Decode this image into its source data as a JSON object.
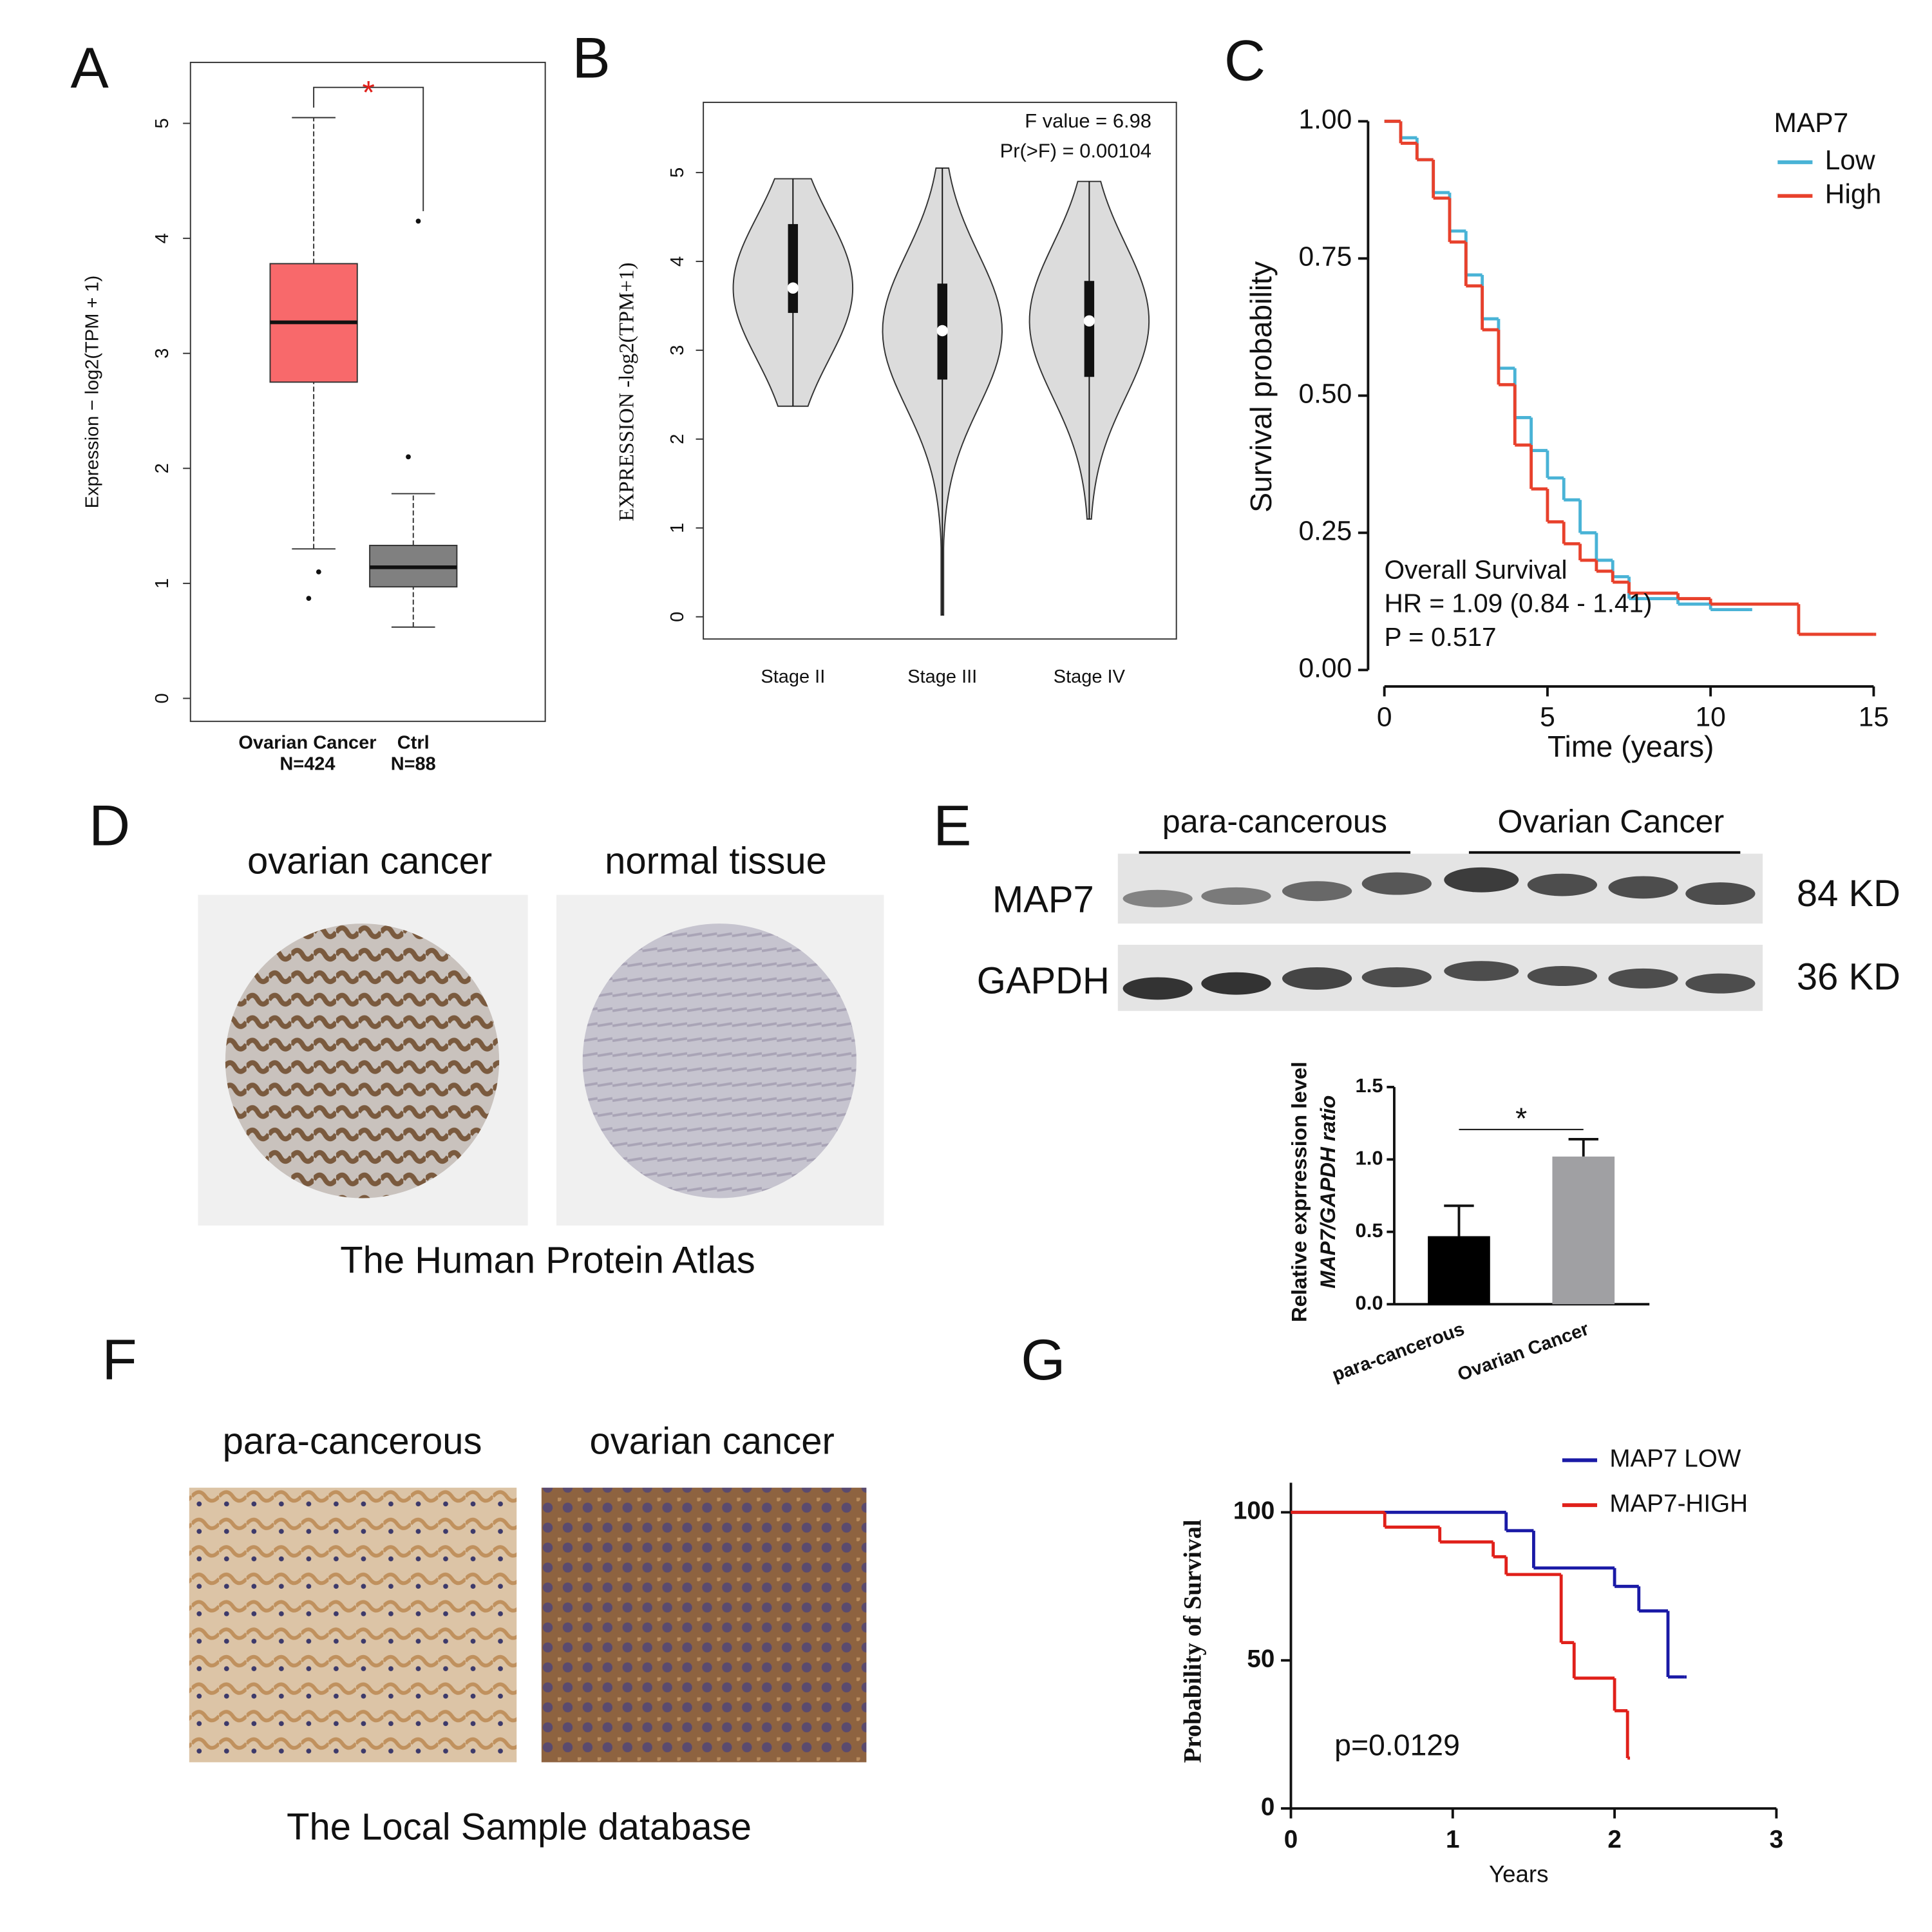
{
  "figure": {
    "panel_labels": [
      "A",
      "B",
      "C",
      "D",
      "E",
      "F",
      "G"
    ],
    "panel_d": {
      "captions": [
        "ovarian cancer",
        "normal tissue"
      ],
      "source": "The Human Protein Atlas"
    },
    "panel_e_blot": {
      "groups": [
        "para-cancerous",
        "Ovarian Cancer"
      ],
      "proteins": [
        "MAP7",
        "GAPDH"
      ],
      "sizes": [
        "84 KD",
        "36 KD"
      ]
    },
    "panel_f": {
      "captions": [
        "para-cancerous",
        "ovarian cancer"
      ],
      "source": "The Local Sample  database"
    }
  },
  "chart_data": [
    {
      "type": "box",
      "ylabel": "Expression − log2(TPM + 1)",
      "categories": [
        "Ovarian Cancer",
        "Ctrl"
      ],
      "group_sizes": [
        "N=424",
        "N=88"
      ],
      "colors": [
        "#f8696b",
        "#808080"
      ],
      "boxes": [
        {
          "whislo": 1.3,
          "q1": 2.75,
          "med": 3.27,
          "q3": 3.78,
          "whishi": 5.05,
          "fliers": [
            0.87,
            1.1
          ]
        },
        {
          "whislo": 0.62,
          "q1": 0.97,
          "med": 1.14,
          "q3": 1.33,
          "whishi": 1.78,
          "fliers": [
            2.1,
            4.15
          ]
        }
      ],
      "ylim": [
        -0.2,
        5.53
      ],
      "yticks": [
        0,
        1,
        2,
        3,
        4,
        5
      ],
      "significance": "*"
    },
    {
      "type": "violin",
      "ylabel": "EXPRESSION -log2(TPM+1)",
      "annotations": [
        "F value = 6.98",
        "Pr(>F) = 0.00104"
      ],
      "categories": [
        "Stage II",
        "Stage III",
        "Stage IV"
      ],
      "violins": [
        {
          "min": 2.37,
          "q1": 3.42,
          "med": 3.7,
          "q3": 4.42,
          "max": 4.93
        },
        {
          "min": 0.02,
          "q1": 2.67,
          "med": 3.22,
          "q3": 3.75,
          "max": 5.05
        },
        {
          "min": 1.1,
          "q1": 2.7,
          "med": 3.33,
          "q3": 3.78,
          "max": 4.9
        }
      ],
      "color": "#dcdcdc",
      "ylim": [
        -0.25,
        5.79
      ],
      "yticks": [
        0,
        1,
        2,
        3,
        4,
        5
      ]
    },
    {
      "type": "survival",
      "xlabel": "Time (years)",
      "ylabel": "Survival probability",
      "legend_title": "MAP7",
      "legend": "top-right",
      "annotations": [
        "Overall Survival",
        "HR = 1.09 (0.84 -  1.41)",
        "P = 0.517"
      ],
      "series": [
        {
          "name": "Low",
          "color": "#49b3d6",
          "x": [
            0,
            0.5,
            1,
            1.5,
            2,
            2.5,
            3,
            3.5,
            4,
            4.5,
            5,
            5.5,
            6,
            6.5,
            7,
            7.5,
            8,
            9,
            10,
            11.2
          ],
          "values": [
            1,
            0.97,
            0.93,
            0.87,
            0.8,
            0.72,
            0.64,
            0.55,
            0.46,
            0.4,
            0.35,
            0.31,
            0.25,
            0.2,
            0.17,
            0.13,
            0.13,
            0.12,
            0.11,
            0.11
          ]
        },
        {
          "name": "High",
          "color": "#e8412c",
          "x": [
            0,
            0.5,
            1,
            1.5,
            2,
            2.5,
            3,
            3.5,
            4,
            4.5,
            5,
            5.5,
            6,
            6.5,
            7,
            7.5,
            8,
            9,
            10,
            12.7,
            15
          ],
          "values": [
            1,
            0.96,
            0.93,
            0.86,
            0.78,
            0.7,
            0.62,
            0.52,
            0.41,
            0.33,
            0.27,
            0.23,
            0.2,
            0.18,
            0.16,
            0.14,
            0.14,
            0.13,
            0.12,
            0.065,
            0.065
          ]
        }
      ],
      "xlim": [
        -0.5,
        15.3
      ],
      "ylim": [
        -0.03,
        1.03
      ],
      "xticks": [
        0,
        5,
        10,
        15
      ],
      "yticks": [
        {
          "value": 0,
          "label": "0.00"
        },
        {
          "value": 0.25,
          "label": "0.25"
        },
        {
          "value": 0.5,
          "label": "0.50"
        },
        {
          "value": 0.75,
          "label": "0.75"
        },
        {
          "value": 1,
          "label": "1.00"
        }
      ]
    },
    {
      "type": "bar",
      "ylabel": [
        "Relative exprression level",
        "MAP7/GAPDH ratio"
      ],
      "categories": [
        "para-cancerous",
        "Ovarian Cancer"
      ],
      "values": [
        0.47,
        1.02
      ],
      "errors": [
        0.21,
        0.12
      ],
      "colors": [
        "#000000",
        "#a0a0a3"
      ],
      "ylim": [
        0,
        1.5
      ],
      "yticks": [
        {
          "value": 0,
          "label": "0.0"
        },
        {
          "value": 0.5,
          "label": "0.5"
        },
        {
          "value": 1,
          "label": "1.0"
        },
        {
          "value": 1.5,
          "label": "1.5"
        }
      ],
      "significance": "*"
    },
    {
      "type": "survival",
      "xlabel": "Years",
      "ylabel": "Probability of Survival",
      "legend": "top",
      "annotations": [
        "p=0.0129"
      ],
      "series": [
        {
          "name": "MAP7 LOW",
          "color": "#1a1aa6",
          "x": [
            0,
            1.33,
            1.5,
            2.0,
            2.15,
            2.33,
            2.43
          ],
          "values": [
            100,
            93.8,
            81.2,
            75,
            66.7,
            44.4,
            44.4
          ]
        },
        {
          "name": "MAP7-HIGH",
          "color": "#e0201a",
          "x": [
            0,
            0.58,
            0.92,
            1.25,
            1.33,
            1.67,
            1.75,
            2.0,
            2.08
          ],
          "values": [
            100,
            95,
            90,
            85,
            79,
            56,
            44,
            33,
            17
          ]
        }
      ],
      "xlim": [
        0,
        3
      ],
      "ylim": [
        0,
        110
      ],
      "xticks": [
        0,
        1,
        2,
        3
      ],
      "yticks": [
        0,
        50,
        100
      ]
    }
  ]
}
